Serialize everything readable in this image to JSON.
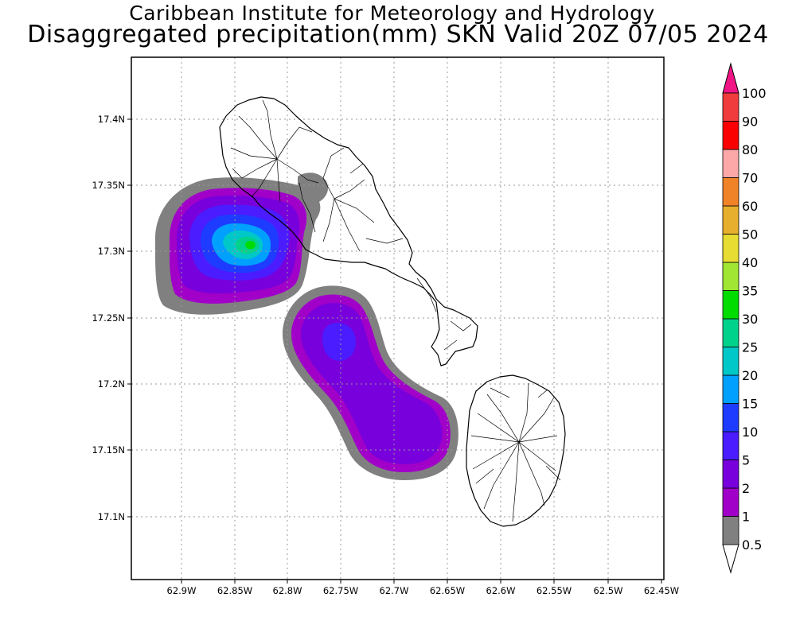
{
  "title": {
    "line1": "Caribbean Institute for Meteorology and Hydrology",
    "line2": "Disaggregated precipitation(mm) SKN Valid 20Z 07/05 2024"
  },
  "axes": {
    "lon_ticks": [
      "62.9W",
      "62.85W",
      "62.8W",
      "62.75W",
      "62.7W",
      "62.65W",
      "62.6W",
      "62.55W",
      "62.5W",
      "62.45W"
    ],
    "lat_ticks": [
      "17.4N",
      "17.35N",
      "17.3N",
      "17.25N",
      "17.2N",
      "17.15N",
      "17.1N"
    ],
    "grid": "dotted"
  },
  "colorbar": {
    "levels": [
      {
        "label": "0.5",
        "color": "#808080"
      },
      {
        "label": "1",
        "color": "#a000c8"
      },
      {
        "label": "2",
        "color": "#7800dc"
      },
      {
        "label": "5",
        "color": "#4a1cff"
      },
      {
        "label": "10",
        "color": "#1e3cff"
      },
      {
        "label": "15",
        "color": "#00a0ff"
      },
      {
        "label": "20",
        "color": "#00c8c8"
      },
      {
        "label": "25",
        "color": "#00d28c"
      },
      {
        "label": "30",
        "color": "#00dc00"
      },
      {
        "label": "35",
        "color": "#a0e632"
      },
      {
        "label": "40",
        "color": "#e6dc32"
      },
      {
        "label": "50",
        "color": "#e6af2d"
      },
      {
        "label": "60",
        "color": "#f08228"
      },
      {
        "label": "70",
        "color": "#fca8a8"
      },
      {
        "label": "80",
        "color": "#fa0000"
      },
      {
        "label": "90",
        "color": "#f03c3c"
      },
      {
        "label": "100",
        "color": "#f01484"
      }
    ]
  }
}
